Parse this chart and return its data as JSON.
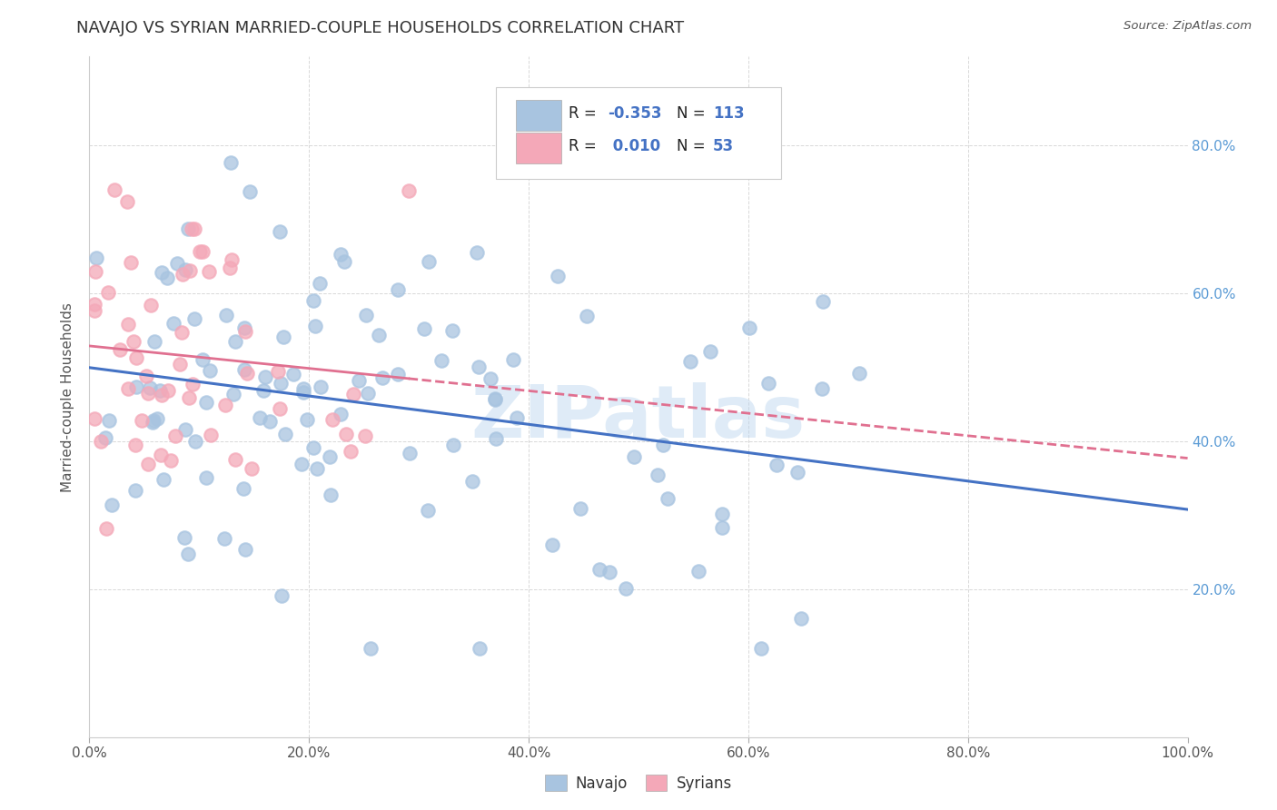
{
  "title": "NAVAJO VS SYRIAN MARRIED-COUPLE HOUSEHOLDS CORRELATION CHART",
  "source": "Source: ZipAtlas.com",
  "ylabel": "Married-couple Households",
  "navajo_R": -0.353,
  "navajo_N": 113,
  "syrian_R": 0.01,
  "syrian_N": 53,
  "navajo_color": "#a8c4e0",
  "syrian_color": "#f4a8b8",
  "navajo_line_color": "#4472c4",
  "syrian_line_color": "#e07090",
  "background_color": "#ffffff",
  "grid_color": "#d8d8d8",
  "watermark": "ZIPatlas",
  "title_fontsize": 13,
  "axis_fontsize": 11,
  "legend_text_color": "#4472c4",
  "ytick_color": "#5b9bd5"
}
